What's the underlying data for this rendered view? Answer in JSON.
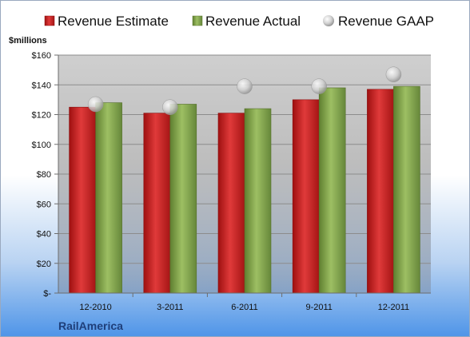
{
  "chart_data": {
    "type": "bar",
    "categories": [
      "12-2010",
      "3-2011",
      "6-2011",
      "9-2011",
      "12-2011"
    ],
    "series": [
      {
        "name": "Revenue Estimate",
        "values": [
          125,
          121,
          121,
          130,
          137
        ],
        "color": "#d42a2a"
      },
      {
        "name": "Revenue Actual",
        "values": [
          128,
          127,
          124,
          138,
          139
        ],
        "color": "#8fb356"
      }
    ],
    "markers": {
      "name": "Revenue GAAP",
      "values": [
        127,
        125,
        139,
        139,
        147
      ],
      "color": "#c8c8c8"
    },
    "ylabel": "$millions",
    "ylim": [
      0,
      160
    ],
    "yticks": [
      0,
      20,
      40,
      60,
      80,
      100,
      120,
      140,
      160
    ],
    "ytick_labels": [
      "$-",
      "$20",
      "$40",
      "$60",
      "$80",
      "$100",
      "$120",
      "$140",
      "$160"
    ],
    "grid": true,
    "legend": "top"
  },
  "company": "RailAmerica"
}
